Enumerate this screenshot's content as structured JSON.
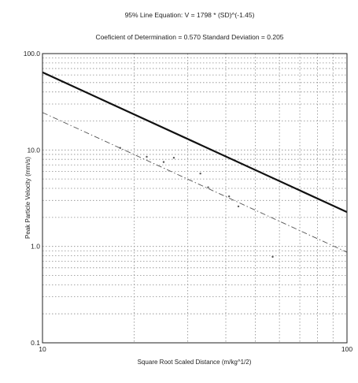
{
  "chart_data": {
    "type": "scatter",
    "title": "95% Line Equation: V = 1798 * (SD)^(-1.45)",
    "subtitle": "Coeficient of Determination = 0.570  Standard Deviation = 0.205",
    "xlabel": "Square Root Scaled Distance (m/kg^1/2)",
    "ylabel": "Peak Particle Velocity (mm/s)",
    "x_scale": "log",
    "y_scale": "log",
    "xlim": [
      10,
      100
    ],
    "ylim": [
      0.1,
      100
    ],
    "x_ticks": [
      {
        "value": 10,
        "label": "10"
      },
      {
        "value": 100,
        "label": "100"
      }
    ],
    "y_ticks": [
      {
        "value": 0.1,
        "label": "0.1"
      },
      {
        "value": 1,
        "label": "1.0"
      },
      {
        "value": 10,
        "label": "10.0"
      },
      {
        "value": 100,
        "label": "100.0"
      }
    ],
    "grid": true,
    "series": [
      {
        "style": "solid-thick",
        "x": [
          10,
          100
        ],
        "y": [
          63.9,
          2.27
        ]
      },
      {
        "style": "dash-dot",
        "x": [
          10,
          100
        ],
        "y": [
          24.5,
          0.87
        ]
      }
    ],
    "points": [
      {
        "x": 18,
        "y": 10.5
      },
      {
        "x": 22,
        "y": 8.5
      },
      {
        "x": 25,
        "y": 7.5
      },
      {
        "x": 27,
        "y": 8.3
      },
      {
        "x": 33,
        "y": 5.7
      },
      {
        "x": 35,
        "y": 4.1
      },
      {
        "x": 41,
        "y": 3.3
      },
      {
        "x": 44,
        "y": 2.6
      },
      {
        "x": 57,
        "y": 0.78
      }
    ]
  }
}
